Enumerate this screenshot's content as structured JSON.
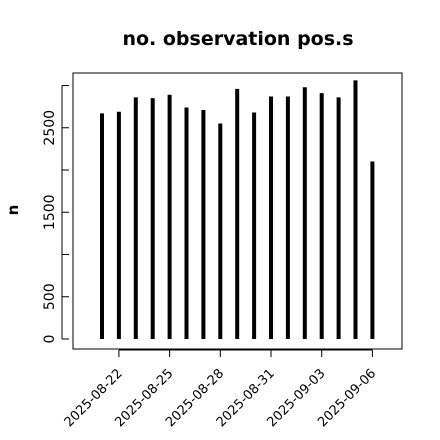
{
  "chart_data": {
    "type": "bar",
    "title": "no. observation pos.s",
    "xlabel": "",
    "ylabel": "n",
    "x": [
      "2025-08-21",
      "2025-08-22",
      "2025-08-23",
      "2025-08-24",
      "2025-08-25",
      "2025-08-26",
      "2025-08-27",
      "2025-08-28",
      "2025-08-29",
      "2025-08-30",
      "2025-08-31",
      "2025-09-01",
      "2025-09-02",
      "2025-09-03",
      "2025-09-04",
      "2025-09-05",
      "2025-09-06"
    ],
    "values": [
      2670,
      2690,
      2860,
      2850,
      2890,
      2740,
      2710,
      2550,
      2960,
      2680,
      2870,
      2870,
      2980,
      2910,
      2860,
      3060,
      2100
    ],
    "ylim": [
      0,
      3100
    ],
    "yticks": [
      "0",
      "500",
      "1500",
      "2500"
    ],
    "xtick_labels": [
      {
        "date": "2025-08-22",
        "label": "2025-08-22",
        "color": "#000000"
      },
      {
        "date": "2025-08-25",
        "label": "2025-08-25",
        "color": "#000000"
      },
      {
        "date": "2025-08-28",
        "label": "2025-08-28",
        "color": "#228B22"
      },
      {
        "date": "2025-08-31",
        "label": "2025-08-31",
        "color": "#000000"
      },
      {
        "date": "2025-09-03",
        "label": "2025-09-03",
        "color": "#000000"
      },
      {
        "date": "2025-09-06",
        "label": "2025-09-06",
        "color": "#000000"
      }
    ],
    "bar_color": "#000000",
    "grid": false,
    "legend": "none"
  }
}
